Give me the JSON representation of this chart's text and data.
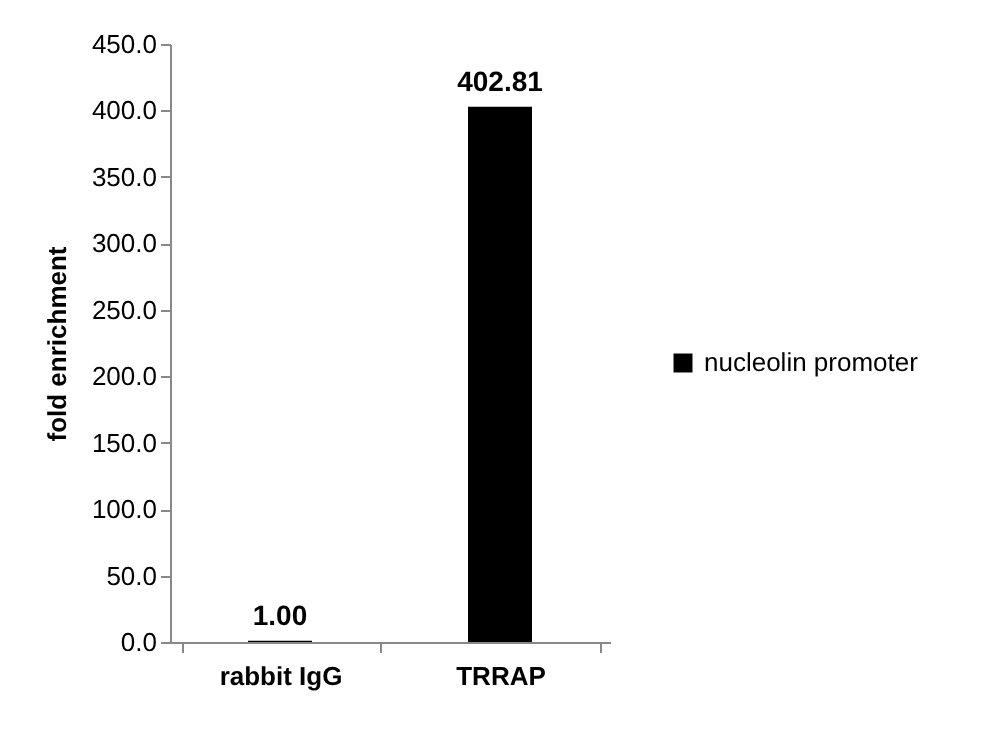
{
  "chart_data": {
    "type": "bar",
    "ylabel": "fold enrichment",
    "categories": [
      "rabbit IgG",
      "TRRAP"
    ],
    "series": [
      {
        "name": "nucleolin promoter",
        "color": "#000000",
        "values": [
          1.0,
          402.81
        ],
        "value_labels": [
          "1.00",
          "402.81"
        ]
      }
    ],
    "ylim": [
      0,
      450
    ],
    "yticks": [
      {
        "value": 0,
        "label": "0.0"
      },
      {
        "value": 50,
        "label": "50.0"
      },
      {
        "value": 100,
        "label": "100.0"
      },
      {
        "value": 150,
        "label": "150.0"
      },
      {
        "value": 200,
        "label": "200.0"
      },
      {
        "value": 250,
        "label": "250.0"
      },
      {
        "value": 300,
        "label": "300.0"
      },
      {
        "value": 350,
        "label": "350.0"
      },
      {
        "value": 400,
        "label": "400.0"
      },
      {
        "value": 450,
        "label": "450.0"
      }
    ],
    "legend": "right"
  }
}
